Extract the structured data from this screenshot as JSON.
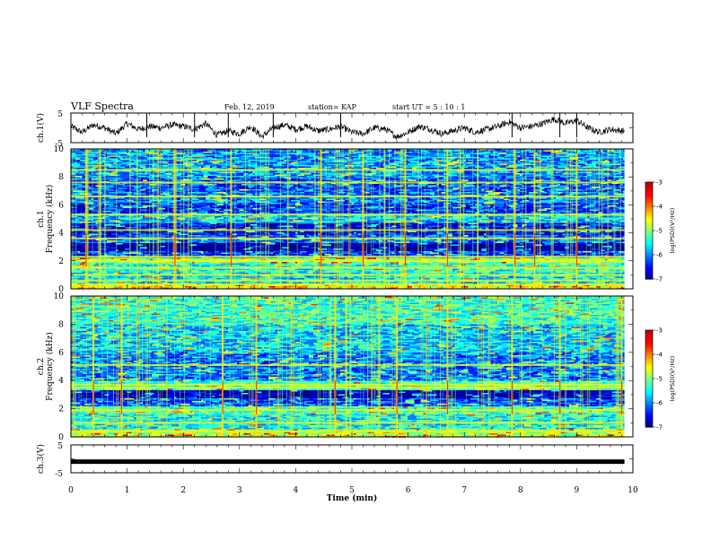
{
  "header": {
    "title": "VLF Spectra",
    "date": "Feb. 12, 2019",
    "station": "station= KAP",
    "start_ut": "start  UT =   5 : 10 : 1"
  },
  "chart_data": [
    {
      "type": "line",
      "ylabel": "ch.1(V)",
      "ylim": [
        -5,
        5
      ],
      "yticks": [
        "5",
        "-5"
      ],
      "xlim": [
        0,
        10
      ],
      "series": [
        {
          "x": [
            0,
            0.2,
            0.4,
            0.6,
            0.8,
            1.0,
            1.2,
            1.4,
            1.6,
            1.8,
            2.0,
            2.2,
            2.4,
            2.6,
            2.8,
            3.0,
            3.2,
            3.4,
            3.6,
            3.8,
            4.0,
            4.2,
            4.4,
            4.6,
            4.8,
            5.0,
            5.2,
            5.4,
            5.6,
            5.8,
            6.0,
            6.2,
            6.4,
            6.6,
            6.8,
            7.0,
            7.2,
            7.4,
            7.6,
            7.8,
            8.0,
            8.2,
            8.4,
            8.6,
            8.8,
            9.0,
            9.2,
            9.4,
            9.6,
            9.8
          ],
          "y": [
            0.5,
            -1.5,
            1.0,
            0.0,
            -2.0,
            1.5,
            -0.5,
            0.5,
            0.0,
            1.0,
            0.5,
            -0.5,
            1.5,
            -2.5,
            -1.0,
            -2.0,
            0.5,
            -3.0,
            0.0,
            1.0,
            -0.5,
            0.5,
            -1.0,
            -0.5,
            0.5,
            -1.5,
            -2.0,
            0.0,
            -0.5,
            -3.0,
            -1.5,
            0.5,
            -0.5,
            -2.0,
            -1.0,
            0.0,
            -1.5,
            -0.5,
            0.5,
            2.0,
            0.0,
            0.5,
            1.5,
            3.0,
            1.5,
            2.5,
            0.0,
            -1.5,
            -0.5,
            -1.0
          ]
        }
      ],
      "spikes": [
        1.35,
        2.2,
        2.8,
        3.6,
        4.8,
        7.85,
        8.7,
        9.0
      ]
    },
    {
      "type": "heatmap",
      "ylabel": "ch.1\nFrequency  (kHz)",
      "ylim": [
        0,
        10
      ],
      "yticks": [
        "0",
        "2",
        "4",
        "6",
        "8",
        "10"
      ],
      "xlim": [
        0,
        10
      ],
      "colorbar": {
        "label": "log(PSD)(V²/Hz)",
        "ticks": [
          "-3",
          "-4",
          "-5",
          "-6",
          "-7"
        ],
        "range": [
          -7,
          -3
        ]
      },
      "bands": [
        {
          "f0": 0.0,
          "f1": 0.4,
          "level": -4.5
        },
        {
          "f0": 0.4,
          "f1": 1.2,
          "level": -5.6
        },
        {
          "f0": 1.2,
          "f1": 1.9,
          "level": -5.4
        },
        {
          "f0": 1.9,
          "f1": 2.3,
          "level": -4.9
        },
        {
          "f0": 2.3,
          "f1": 2.7,
          "level": -6.3
        },
        {
          "f0": 2.7,
          "f1": 3.3,
          "level": -6.9
        },
        {
          "f0": 3.3,
          "f1": 3.9,
          "level": -6.1
        },
        {
          "f0": 3.9,
          "f1": 4.8,
          "level": -6.5
        },
        {
          "f0": 4.8,
          "f1": 5.4,
          "level": -5.7
        },
        {
          "f0": 5.4,
          "f1": 6.2,
          "level": -6.3
        },
        {
          "f0": 6.2,
          "f1": 7.0,
          "level": -6.0
        },
        {
          "f0": 7.0,
          "f1": 8.0,
          "level": -6.2
        },
        {
          "f0": 8.0,
          "f1": 10.0,
          "level": -5.9
        }
      ],
      "lines_khz": [
        0.3,
        0.6,
        1.0,
        1.5,
        2.0,
        2.3,
        3.6,
        4.2,
        5.3,
        6.6,
        7.6,
        8.5
      ],
      "bursts_min": [
        0.27,
        1.85,
        2.85,
        4.45,
        5.2,
        5.95,
        6.7,
        7.9,
        8.25,
        9.0
      ]
    },
    {
      "type": "heatmap",
      "ylabel": "ch.2\nFrequency  (kHz)",
      "ylim": [
        0,
        10
      ],
      "yticks": [
        "0",
        "2",
        "4",
        "6",
        "8",
        "10"
      ],
      "xlim": [
        0,
        10
      ],
      "colorbar": {
        "label": "log(PSD)(V²/Hz)",
        "ticks": [
          "-3",
          "-4",
          "-5",
          "-6",
          "-7"
        ],
        "range": [
          -7,
          -3
        ]
      },
      "bands": [
        {
          "f0": 0.0,
          "f1": 0.6,
          "level": -4.8
        },
        {
          "f0": 0.6,
          "f1": 1.6,
          "level": -5.5
        },
        {
          "f0": 1.6,
          "f1": 2.2,
          "level": -5.2
        },
        {
          "f0": 2.2,
          "f1": 2.8,
          "level": -6.2
        },
        {
          "f0": 2.8,
          "f1": 3.4,
          "level": -6.8
        },
        {
          "f0": 3.4,
          "f1": 4.0,
          "level": -5.2
        },
        {
          "f0": 4.0,
          "f1": 6.0,
          "level": -6.0
        },
        {
          "f0": 6.0,
          "f1": 8.0,
          "level": -5.7
        },
        {
          "f0": 8.0,
          "f1": 10.0,
          "level": -5.3
        }
      ],
      "lines_khz": [
        0.4,
        1.0,
        1.9,
        3.5,
        3.7,
        5.1
      ],
      "bursts_min": [
        0.4,
        0.9,
        2.7,
        3.3,
        4.7,
        5.8,
        6.7,
        7.85,
        8.7,
        9.8
      ]
    },
    {
      "type": "line",
      "ylabel": "ch.3(V)",
      "ylim": [
        -5,
        5
      ],
      "yticks": [
        "5",
        "-5"
      ],
      "xlim": [
        0,
        9.85
      ],
      "series": [
        {
          "x": [
            0,
            9.85
          ],
          "y": [
            -1,
            -1
          ]
        }
      ]
    }
  ],
  "xaxis": {
    "label": "Time  (min)",
    "ticks": [
      "0",
      "1",
      "2",
      "3",
      "4",
      "5",
      "6",
      "7",
      "8",
      "9",
      "10"
    ]
  }
}
